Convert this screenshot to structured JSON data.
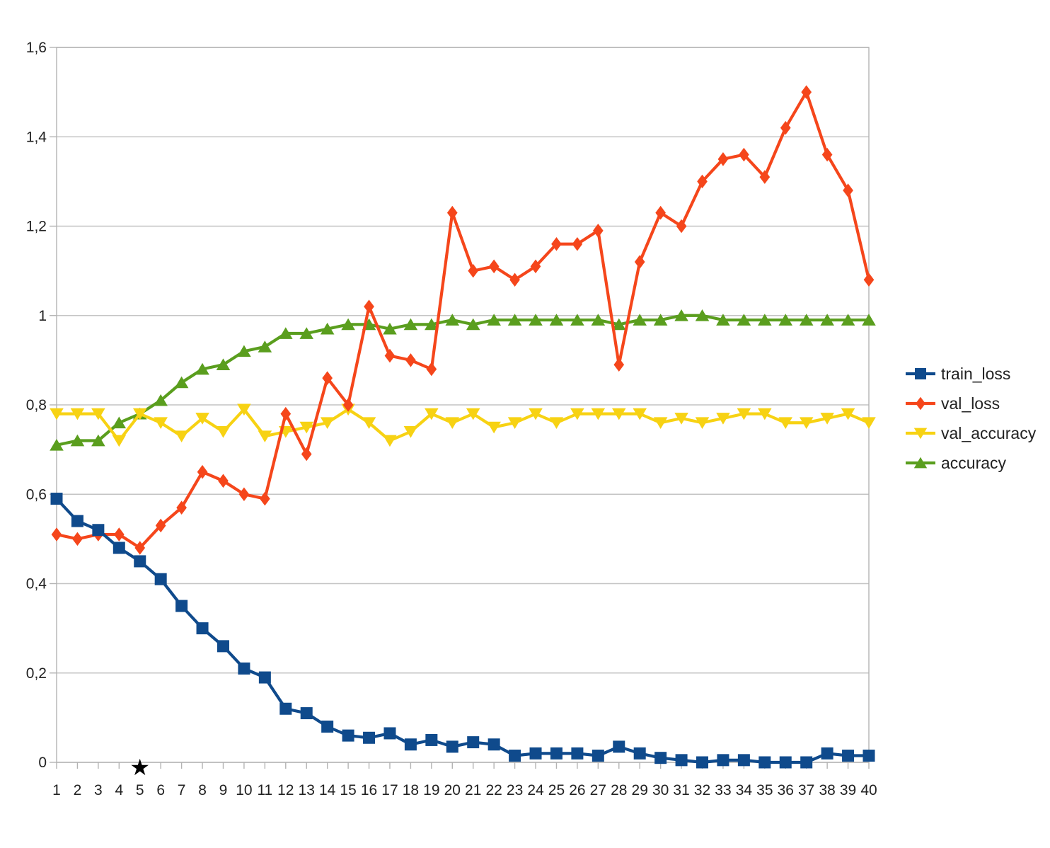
{
  "chart_data": {
    "type": "line",
    "x": [
      1,
      2,
      3,
      4,
      5,
      6,
      7,
      8,
      9,
      10,
      11,
      12,
      13,
      14,
      15,
      16,
      17,
      18,
      19,
      20,
      21,
      22,
      23,
      24,
      25,
      26,
      27,
      28,
      29,
      30,
      31,
      32,
      33,
      34,
      35,
      36,
      37,
      38,
      39,
      40
    ],
    "ylim": [
      0,
      1.6
    ],
    "yticks": [
      0,
      0.2,
      0.4,
      0.6,
      0.8,
      1,
      1.2,
      1.4,
      1.6
    ],
    "ytick_labels": [
      "0",
      "0,2",
      "0,4",
      "0,6",
      "0,8",
      "1",
      "1,2",
      "1,4",
      "1,6"
    ],
    "grid": true,
    "legend_position": "right",
    "annotation": {
      "symbol": "★",
      "at_x": 5
    },
    "series": [
      {
        "name": "train_loss",
        "color": "#0f4a8c",
        "marker": "square",
        "values": [
          0.59,
          0.54,
          0.52,
          0.48,
          0.45,
          0.41,
          0.35,
          0.3,
          0.26,
          0.21,
          0.19,
          0.12,
          0.11,
          0.08,
          0.06,
          0.055,
          0.065,
          0.04,
          0.05,
          0.035,
          0.045,
          0.04,
          0.015,
          0.02,
          0.02,
          0.02,
          0.015,
          0.035,
          0.02,
          0.01,
          0.005,
          0.0,
          0.005,
          0.005,
          0.0,
          0.0,
          0.0,
          0.02,
          0.015,
          0.015
        ]
      },
      {
        "name": "val_loss",
        "color": "#f5461b",
        "marker": "diamond",
        "values": [
          0.51,
          0.5,
          0.51,
          0.51,
          0.48,
          0.53,
          0.57,
          0.65,
          0.63,
          0.6,
          0.59,
          0.78,
          0.69,
          0.86,
          0.8,
          1.02,
          0.91,
          0.9,
          0.88,
          1.23,
          1.1,
          1.11,
          1.08,
          1.11,
          1.16,
          1.16,
          1.19,
          0.89,
          1.12,
          1.23,
          1.2,
          1.3,
          1.35,
          1.36,
          1.31,
          1.42,
          1.5,
          1.36,
          1.28,
          1.08
        ]
      },
      {
        "name": "val_accuracy",
        "color": "#f7d213",
        "marker": "triangle-down",
        "values": [
          0.78,
          0.78,
          0.78,
          0.72,
          0.78,
          0.76,
          0.73,
          0.77,
          0.74,
          0.79,
          0.73,
          0.74,
          0.75,
          0.76,
          0.79,
          0.76,
          0.72,
          0.74,
          0.78,
          0.76,
          0.78,
          0.75,
          0.76,
          0.78,
          0.76,
          0.78,
          0.78,
          0.78,
          0.78,
          0.76,
          0.77,
          0.76,
          0.77,
          0.78,
          0.78,
          0.76,
          0.76,
          0.77,
          0.78,
          0.76
        ]
      },
      {
        "name": "accuracy",
        "color": "#5a9e1e",
        "marker": "triangle-up",
        "values": [
          0.71,
          0.72,
          0.72,
          0.76,
          0.78,
          0.81,
          0.85,
          0.88,
          0.89,
          0.92,
          0.93,
          0.96,
          0.96,
          0.97,
          0.98,
          0.98,
          0.97,
          0.98,
          0.98,
          0.99,
          0.98,
          0.99,
          0.99,
          0.99,
          0.99,
          0.99,
          0.99,
          0.98,
          0.99,
          0.99,
          1.0,
          1.0,
          0.99,
          0.99,
          0.99,
          0.99,
          0.99,
          0.99,
          0.99,
          0.99
        ]
      }
    ]
  }
}
